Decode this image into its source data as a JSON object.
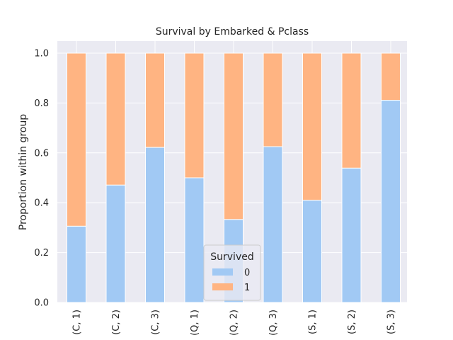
{
  "chart_data": {
    "type": "bar",
    "stacked": true,
    "title": "Survival by Embarked & Pclass",
    "xlabel": "",
    "ylabel": "Proportion within group",
    "ylim": [
      0,
      1
    ],
    "yticks": [
      "0.0",
      "0.2",
      "0.4",
      "0.6",
      "0.8",
      "1.0"
    ],
    "categories": [
      "(C, 1)",
      "(C, 2)",
      "(C, 3)",
      "(Q, 1)",
      "(Q, 2)",
      "(Q, 3)",
      "(S, 1)",
      "(S, 2)",
      "(S, 3)"
    ],
    "series": [
      {
        "name": "0",
        "color": "#a1c9f4",
        "values": [
          0.306,
          0.471,
          0.622,
          0.5,
          0.333,
          0.625,
          0.41,
          0.539,
          0.811
        ]
      },
      {
        "name": "1",
        "color": "#ffb482",
        "values": [
          0.694,
          0.529,
          0.378,
          0.5,
          0.667,
          0.375,
          0.59,
          0.461,
          0.189
        ]
      }
    ],
    "legend": {
      "title": "Survived",
      "position": "lower-center"
    },
    "grid": true,
    "background": "#eaeaf2"
  }
}
